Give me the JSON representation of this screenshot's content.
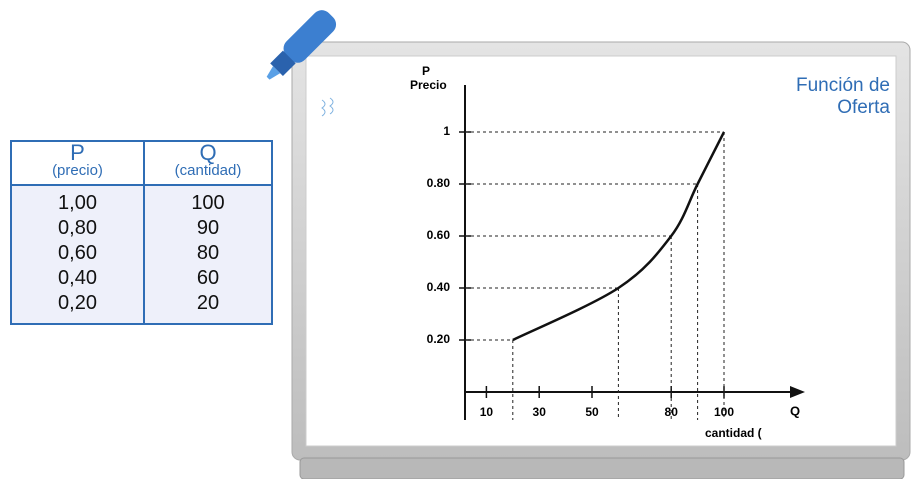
{
  "table": {
    "header": [
      [
        "P",
        "(precio)"
      ],
      [
        "Q",
        "(cantidad)"
      ]
    ],
    "rows": [
      [
        "1,00",
        "100"
      ],
      [
        "0,80",
        "90"
      ],
      [
        "0,60",
        "80"
      ],
      [
        "0,40",
        "60"
      ],
      [
        "0,20",
        "20"
      ]
    ]
  },
  "chart_data": {
    "type": "line",
    "title": "Función de Oferta",
    "y_symbol": "P",
    "y_label": "Precio",
    "x_symbol": "Q",
    "x_label": "cantidad (",
    "x": [
      20,
      60,
      80,
      90,
      100
    ],
    "series": [
      {
        "name": "Oferta",
        "color": "#111111",
        "values": [
          0.2,
          0.4,
          0.6,
          0.8,
          1
        ]
      }
    ],
    "xlim": [
      0,
      130
    ],
    "ylim": [
      0,
      1.18
    ],
    "xticks": [
      10,
      30,
      50,
      80,
      100
    ],
    "yticks": [
      {
        "value": 0.2,
        "label": "0.20"
      },
      {
        "value": 0.4,
        "label": "0.40"
      },
      {
        "value": 0.6,
        "label": "0.60"
      },
      {
        "value": 0.8,
        "label": "0.80"
      },
      1
    ],
    "guides": true
  }
}
